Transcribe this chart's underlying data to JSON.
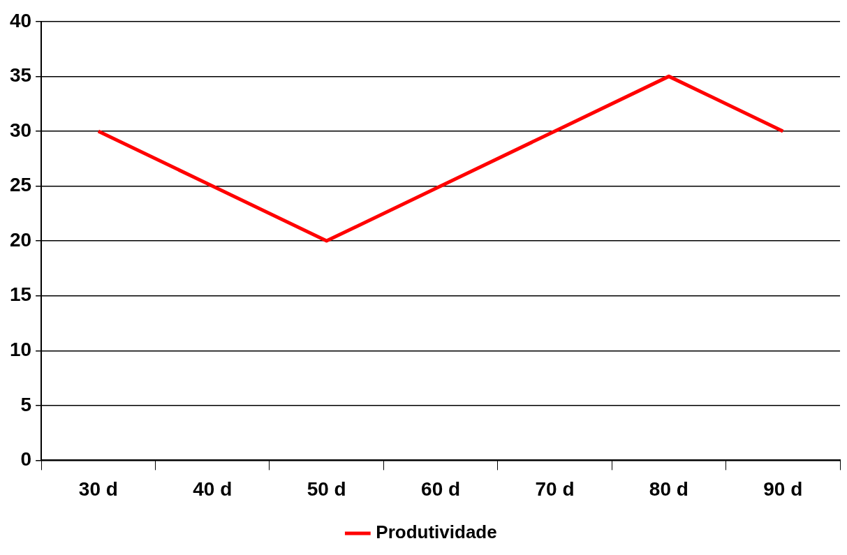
{
  "chart_data": {
    "type": "line",
    "categories": [
      "30 d",
      "40 d",
      "50 d",
      "60 d",
      "70 d",
      "80 d",
      "90 d"
    ],
    "series": [
      {
        "name": "Produtividade",
        "color": "#ff0000",
        "values": [
          30,
          25,
          20,
          25,
          30,
          35,
          30
        ]
      }
    ],
    "ylim": [
      0,
      40
    ],
    "yticks": [
      0,
      5,
      10,
      15,
      20,
      25,
      30,
      35,
      40
    ],
    "grid": "y",
    "legend": "bottom",
    "marker": "none",
    "line_style": "solid"
  }
}
